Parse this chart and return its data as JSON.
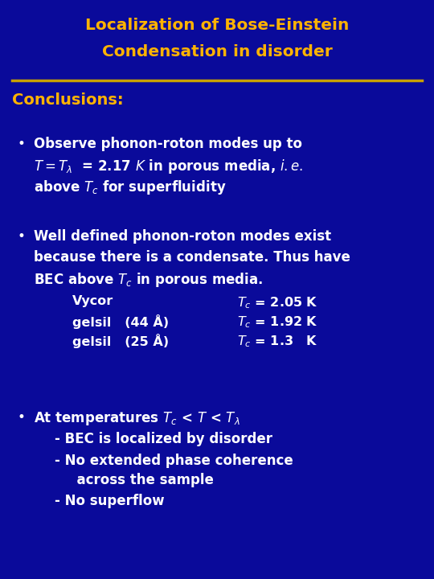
{
  "bg_color": "#0A0A9A",
  "title_color": "#FFB300",
  "conclusions_color": "#FFB300",
  "body_color": "#FFFFFF",
  "separator_color": "#C8A000",
  "title_line1": "Localization of Bose-Einstein",
  "title_line2": "Condensation in disorder",
  "conclusions_label": "Conclusions:",
  "bullet1_line1": "Observe phonon-roton modes up to",
  "bullet1_line2": "$T = T_{\\lambda}$  = 2.17 $K$ in porous media, $i.e.$",
  "bullet1_line3": "above $T_c$ for superfluidity",
  "bullet2_line1": "Well defined phonon-roton modes exist",
  "bullet2_line2": "because there is a condensate. Thus have",
  "bullet2_line3": "BEC above $T_c$ in porous media.",
  "table_row1_left": "Vycor",
  "table_row1_right": "$T_c$ = 2.05 K",
  "table_row2_left": "gelsil   (44 Å)",
  "table_row2_right": "$T_c$ = 1.92 K",
  "table_row3_left": "gelsil   (25 Å)",
  "table_row3_right": "$T_c$ = 1.3   K",
  "bullet3_line1": "At temperatures $T_c$ < $T$ < $T_{\\lambda}$",
  "bullet3_line2": "- BEC is localized by disorder",
  "bullet3_line3": "- No extended phase coherence",
  "bullet3_line4": "  across the sample",
  "bullet3_line5": "- No superflow",
  "title_fontsize": 14.5,
  "conclusions_fontsize": 14,
  "body_fontsize": 12,
  "table_fontsize": 11.5
}
